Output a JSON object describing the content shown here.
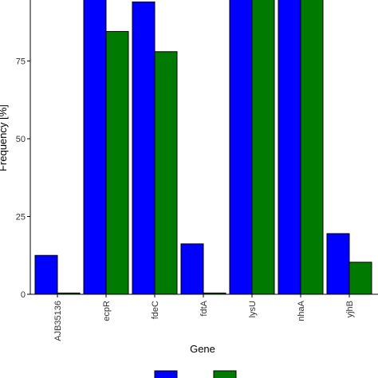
{
  "chart_data": {
    "type": "bar",
    "title": "",
    "xlabel": "Gene",
    "ylabel": "Frequency [%]",
    "ylim": [
      0,
      100
    ],
    "yticks": [
      0,
      25,
      50,
      75
    ],
    "categories": [
      "AJB35136",
      "ecpR",
      "fdeC",
      "fdtA",
      "lysU",
      "nhaA",
      "yjhB"
    ],
    "series": [
      {
        "color": "#0000ff",
        "values": [
          12.5,
          100,
          94,
          16.2,
          100,
          100,
          19.5
        ]
      },
      {
        "color": "#007a00",
        "values": [
          0.4,
          84.5,
          78,
          0.4,
          95,
          100,
          10.3
        ]
      }
    ],
    "grid": false,
    "legend_position": "bottom"
  }
}
